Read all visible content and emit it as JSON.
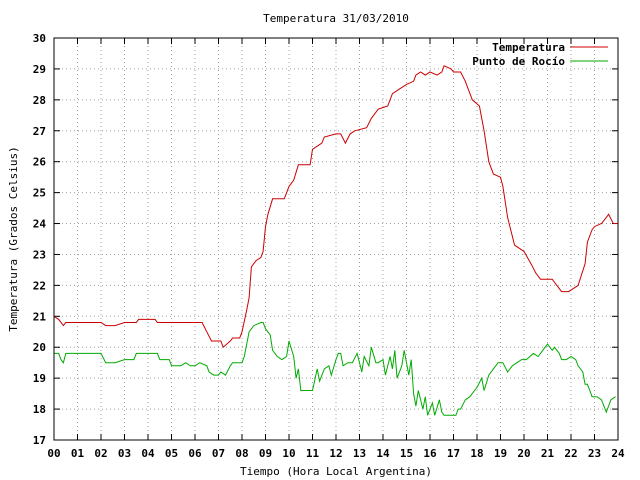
{
  "chart_data": {
    "type": "line",
    "title": "Temperatura 31/03/2010",
    "xlabel": "Tiempo (Hora Local Argentina)",
    "ylabel": "Temperatura (Grados Celsius)",
    "xlim": [
      0,
      24
    ],
    "ylim": [
      17,
      30
    ],
    "x_ticks": [
      "00",
      "01",
      "02",
      "03",
      "04",
      "05",
      "06",
      "07",
      "08",
      "09",
      "10",
      "11",
      "12",
      "13",
      "14",
      "15",
      "16",
      "17",
      "18",
      "19",
      "20",
      "21",
      "22",
      "23",
      "24"
    ],
    "y_ticks": [
      "17",
      "18",
      "19",
      "20",
      "21",
      "22",
      "23",
      "24",
      "25",
      "26",
      "27",
      "28",
      "29",
      "30"
    ],
    "grid": true,
    "legend_position": "top-right",
    "series": [
      {
        "name": "Temperatura",
        "color": "#cc0000",
        "points": [
          [
            0.0,
            21.0
          ],
          [
            0.2,
            20.9
          ],
          [
            0.4,
            20.7
          ],
          [
            0.5,
            20.8
          ],
          [
            1.0,
            20.8
          ],
          [
            1.5,
            20.8
          ],
          [
            2.0,
            20.8
          ],
          [
            2.2,
            20.7
          ],
          [
            2.6,
            20.7
          ],
          [
            3.0,
            20.8
          ],
          [
            3.5,
            20.8
          ],
          [
            3.6,
            20.9
          ],
          [
            4.3,
            20.9
          ],
          [
            4.4,
            20.8
          ],
          [
            5.0,
            20.8
          ],
          [
            5.5,
            20.8
          ],
          [
            6.3,
            20.8
          ],
          [
            6.5,
            20.5
          ],
          [
            6.7,
            20.2
          ],
          [
            7.1,
            20.2
          ],
          [
            7.2,
            20.0
          ],
          [
            7.5,
            20.2
          ],
          [
            7.6,
            20.3
          ],
          [
            7.9,
            20.3
          ],
          [
            8.0,
            20.5
          ],
          [
            8.2,
            21.2
          ],
          [
            8.3,
            21.6
          ],
          [
            8.4,
            22.6
          ],
          [
            8.6,
            22.8
          ],
          [
            8.8,
            22.9
          ],
          [
            8.9,
            23.1
          ],
          [
            9.0,
            23.9
          ],
          [
            9.1,
            24.3
          ],
          [
            9.3,
            24.8
          ],
          [
            9.8,
            24.8
          ],
          [
            10.0,
            25.2
          ],
          [
            10.2,
            25.4
          ],
          [
            10.4,
            25.9
          ],
          [
            10.9,
            25.9
          ],
          [
            11.0,
            26.4
          ],
          [
            11.2,
            26.5
          ],
          [
            11.4,
            26.6
          ],
          [
            11.5,
            26.8
          ],
          [
            12.0,
            26.9
          ],
          [
            12.2,
            26.9
          ],
          [
            12.4,
            26.6
          ],
          [
            12.6,
            26.9
          ],
          [
            12.8,
            27.0
          ],
          [
            13.3,
            27.1
          ],
          [
            13.5,
            27.4
          ],
          [
            13.8,
            27.7
          ],
          [
            14.2,
            27.8
          ],
          [
            14.4,
            28.2
          ],
          [
            14.6,
            28.3
          ],
          [
            15.0,
            28.5
          ],
          [
            15.3,
            28.6
          ],
          [
            15.4,
            28.8
          ],
          [
            15.6,
            28.9
          ],
          [
            15.8,
            28.8
          ],
          [
            16.0,
            28.9
          ],
          [
            16.3,
            28.8
          ],
          [
            16.5,
            28.9
          ],
          [
            16.6,
            29.1
          ],
          [
            16.9,
            29.0
          ],
          [
            17.0,
            28.9
          ],
          [
            17.3,
            28.9
          ],
          [
            17.5,
            28.6
          ],
          [
            17.8,
            28.0
          ],
          [
            18.1,
            27.8
          ],
          [
            18.3,
            27.0
          ],
          [
            18.5,
            26.0
          ],
          [
            18.7,
            25.6
          ],
          [
            19.0,
            25.5
          ],
          [
            19.1,
            25.2
          ],
          [
            19.3,
            24.2
          ],
          [
            19.4,
            23.9
          ],
          [
            19.6,
            23.3
          ],
          [
            20.0,
            23.1
          ],
          [
            20.3,
            22.7
          ],
          [
            20.5,
            22.4
          ],
          [
            20.7,
            22.2
          ],
          [
            21.2,
            22.2
          ],
          [
            21.4,
            22.0
          ],
          [
            21.6,
            21.8
          ],
          [
            21.9,
            21.8
          ],
          [
            22.3,
            22.0
          ],
          [
            22.6,
            22.7
          ],
          [
            22.7,
            23.4
          ],
          [
            22.9,
            23.8
          ],
          [
            23.0,
            23.9
          ],
          [
            23.3,
            24.0
          ],
          [
            23.5,
            24.2
          ],
          [
            23.6,
            24.3
          ],
          [
            23.8,
            24.0
          ],
          [
            24.0,
            24.0
          ]
        ]
      },
      {
        "name": "Punto de Rocío",
        "color": "#00aa00",
        "points": [
          [
            0.0,
            19.8
          ],
          [
            0.2,
            19.8
          ],
          [
            0.3,
            19.6
          ],
          [
            0.4,
            19.5
          ],
          [
            0.5,
            19.8
          ],
          [
            1.0,
            19.8
          ],
          [
            2.0,
            19.8
          ],
          [
            2.2,
            19.5
          ],
          [
            2.6,
            19.5
          ],
          [
            3.0,
            19.6
          ],
          [
            3.4,
            19.6
          ],
          [
            3.5,
            19.8
          ],
          [
            4.0,
            19.8
          ],
          [
            4.4,
            19.8
          ],
          [
            4.5,
            19.6
          ],
          [
            4.9,
            19.6
          ],
          [
            5.0,
            19.4
          ],
          [
            5.4,
            19.4
          ],
          [
            5.6,
            19.5
          ],
          [
            5.8,
            19.4
          ],
          [
            6.0,
            19.4
          ],
          [
            6.2,
            19.5
          ],
          [
            6.5,
            19.4
          ],
          [
            6.6,
            19.2
          ],
          [
            6.8,
            19.1
          ],
          [
            7.0,
            19.1
          ],
          [
            7.1,
            19.2
          ],
          [
            7.3,
            19.1
          ],
          [
            7.5,
            19.4
          ],
          [
            7.6,
            19.5
          ],
          [
            8.0,
            19.5
          ],
          [
            8.1,
            19.7
          ],
          [
            8.3,
            20.5
          ],
          [
            8.5,
            20.7
          ],
          [
            8.8,
            20.8
          ],
          [
            8.9,
            20.8
          ],
          [
            9.0,
            20.6
          ],
          [
            9.2,
            20.4
          ],
          [
            9.3,
            19.9
          ],
          [
            9.5,
            19.7
          ],
          [
            9.7,
            19.6
          ],
          [
            9.9,
            19.7
          ],
          [
            10.0,
            20.2
          ],
          [
            10.2,
            19.7
          ],
          [
            10.3,
            19.0
          ],
          [
            10.4,
            19.3
          ],
          [
            10.5,
            18.6
          ],
          [
            10.6,
            18.6
          ],
          [
            11.0,
            18.6
          ],
          [
            11.2,
            19.3
          ],
          [
            11.3,
            18.9
          ],
          [
            11.5,
            19.3
          ],
          [
            11.7,
            19.4
          ],
          [
            11.8,
            19.1
          ],
          [
            12.0,
            19.6
          ],
          [
            12.1,
            19.8
          ],
          [
            12.2,
            19.8
          ],
          [
            12.3,
            19.4
          ],
          [
            12.5,
            19.5
          ],
          [
            12.7,
            19.5
          ],
          [
            12.9,
            19.8
          ],
          [
            13.0,
            19.5
          ],
          [
            13.1,
            19.2
          ],
          [
            13.2,
            19.7
          ],
          [
            13.4,
            19.4
          ],
          [
            13.5,
            20.0
          ],
          [
            13.7,
            19.5
          ],
          [
            13.8,
            19.5
          ],
          [
            14.0,
            19.6
          ],
          [
            14.1,
            19.1
          ],
          [
            14.3,
            19.7
          ],
          [
            14.4,
            19.3
          ],
          [
            14.5,
            19.9
          ],
          [
            14.6,
            19.0
          ],
          [
            14.8,
            19.4
          ],
          [
            14.9,
            19.9
          ],
          [
            15.0,
            19.5
          ],
          [
            15.1,
            19.1
          ],
          [
            15.2,
            19.6
          ],
          [
            15.3,
            18.5
          ],
          [
            15.4,
            18.1
          ],
          [
            15.5,
            18.6
          ],
          [
            15.7,
            18.0
          ],
          [
            15.8,
            18.4
          ],
          [
            15.9,
            17.8
          ],
          [
            16.0,
            18.0
          ],
          [
            16.1,
            18.2
          ],
          [
            16.2,
            17.8
          ],
          [
            16.4,
            18.3
          ],
          [
            16.5,
            17.9
          ],
          [
            16.6,
            17.8
          ],
          [
            17.1,
            17.8
          ],
          [
            17.2,
            18.0
          ],
          [
            17.3,
            18.0
          ],
          [
            17.5,
            18.3
          ],
          [
            17.7,
            18.4
          ],
          [
            17.9,
            18.6
          ],
          [
            18.0,
            18.7
          ],
          [
            18.2,
            19.0
          ],
          [
            18.3,
            18.6
          ],
          [
            18.5,
            19.1
          ],
          [
            18.7,
            19.3
          ],
          [
            18.9,
            19.5
          ],
          [
            19.1,
            19.5
          ],
          [
            19.3,
            19.2
          ],
          [
            19.5,
            19.4
          ],
          [
            19.7,
            19.5
          ],
          [
            19.9,
            19.6
          ],
          [
            20.1,
            19.6
          ],
          [
            20.4,
            19.8
          ],
          [
            20.6,
            19.7
          ],
          [
            20.8,
            19.9
          ],
          [
            21.0,
            20.1
          ],
          [
            21.2,
            19.9
          ],
          [
            21.3,
            20.0
          ],
          [
            21.5,
            19.8
          ],
          [
            21.6,
            19.6
          ],
          [
            21.8,
            19.6
          ],
          [
            22.0,
            19.7
          ],
          [
            22.2,
            19.6
          ],
          [
            22.3,
            19.4
          ],
          [
            22.5,
            19.2
          ],
          [
            22.6,
            18.8
          ],
          [
            22.7,
            18.8
          ],
          [
            22.8,
            18.6
          ],
          [
            22.9,
            18.4
          ],
          [
            23.1,
            18.4
          ],
          [
            23.3,
            18.3
          ],
          [
            23.5,
            17.9
          ],
          [
            23.6,
            18.1
          ],
          [
            23.7,
            18.3
          ],
          [
            23.9,
            18.4
          ]
        ]
      }
    ]
  }
}
